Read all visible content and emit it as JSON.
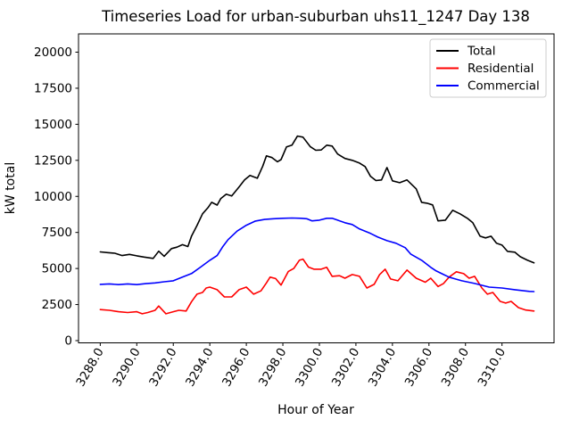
{
  "chart_data": {
    "type": "line",
    "title": "Timeseries Load for urban-suburban uhs11_1247  Day 138",
    "xlabel": "Hour of Year",
    "ylabel": "kW total",
    "xlim": [
      3286.81,
      3312.85
    ],
    "ylim": [
      -155,
      21268
    ],
    "grid": false,
    "x_ticks": [
      3288,
      3290,
      3292,
      3294,
      3296,
      3298,
      3300,
      3302,
      3304,
      3306,
      3308,
      3310
    ],
    "x_tick_labels": [
      "3288.0",
      "3290.0",
      "3292.0",
      "3294.0",
      "3296.0",
      "3298.0",
      "3300.0",
      "3302.0",
      "3304.0",
      "3306.0",
      "3308.0",
      "3310.0"
    ],
    "x_tick_rotation_deg": 60,
    "y_ticks": [
      0,
      2500,
      5000,
      7500,
      10000,
      12500,
      15000,
      17500,
      20000
    ],
    "y_tick_labels": [
      "0",
      "2500",
      "5000",
      "7500",
      "10000",
      "12500",
      "15000",
      "17500",
      "20000"
    ],
    "legend": {
      "position": "upper right",
      "border_color": "#cccccc"
    },
    "series": [
      {
        "name": "Total",
        "color": "#000000",
        "x": [
          3288.0,
          3288.4,
          3288.8,
          3289.2,
          3289.6,
          3290.0,
          3290.4,
          3290.9,
          3291.2,
          3291.5,
          3291.9,
          3292.2,
          3292.5,
          3292.8,
          3293.0,
          3293.3,
          3293.6,
          3293.9,
          3294.1,
          3294.4,
          3294.6,
          3294.9,
          3295.2,
          3295.6,
          3295.9,
          3296.2,
          3296.6,
          3296.9,
          3297.1,
          3297.4,
          3297.7,
          3297.9,
          3298.2,
          3298.5,
          3298.8,
          3299.1,
          3299.5,
          3299.8,
          3300.1,
          3300.4,
          3300.7,
          3301.0,
          3301.4,
          3301.8,
          3302.2,
          3302.5,
          3302.8,
          3303.1,
          3303.4,
          3303.7,
          3304.0,
          3304.4,
          3304.8,
          3305.3,
          3305.6,
          3305.9,
          3306.2,
          3306.5,
          3306.9,
          3307.3,
          3307.7,
          3308.1,
          3308.4,
          3308.8,
          3309.1,
          3309.4,
          3309.7,
          3310.0,
          3310.3,
          3310.7,
          3311.0,
          3311.4,
          3311.75
        ],
        "y": [
          6150,
          6100,
          6060,
          5900,
          5980,
          5880,
          5790,
          5700,
          6200,
          5850,
          6380,
          6480,
          6650,
          6520,
          7250,
          7980,
          8790,
          9220,
          9590,
          9400,
          9840,
          10150,
          10030,
          10650,
          11140,
          11450,
          11260,
          12100,
          12810,
          12690,
          12400,
          12550,
          13430,
          13560,
          14180,
          14110,
          13450,
          13200,
          13220,
          13550,
          13490,
          12940,
          12630,
          12500,
          12310,
          12070,
          11390,
          11100,
          11140,
          12000,
          11080,
          10950,
          11140,
          10520,
          9590,
          9530,
          9410,
          8300,
          8350,
          9040,
          8790,
          8480,
          8170,
          7240,
          7120,
          7240,
          6750,
          6620,
          6190,
          6130,
          5820,
          5570,
          5390
        ]
      },
      {
        "name": "Residential",
        "color": "#ff0000",
        "x": [
          3288.0,
          3288.5,
          3289.0,
          3289.5,
          3290.0,
          3290.3,
          3290.6,
          3291.0,
          3291.2,
          3291.6,
          3292.0,
          3292.3,
          3292.7,
          3293.0,
          3293.3,
          3293.6,
          3293.8,
          3294.0,
          3294.4,
          3294.8,
          3295.2,
          3295.6,
          3296.0,
          3296.4,
          3296.8,
          3297.1,
          3297.3,
          3297.6,
          3297.9,
          3298.3,
          3298.6,
          3298.9,
          3299.1,
          3299.4,
          3299.7,
          3300.1,
          3300.4,
          3300.7,
          3301.1,
          3301.4,
          3301.8,
          3302.2,
          3302.6,
          3303.0,
          3303.3,
          3303.6,
          3303.9,
          3304.3,
          3304.8,
          3305.3,
          3305.8,
          3306.1,
          3306.5,
          3306.8,
          3307.1,
          3307.5,
          3307.9,
          3308.2,
          3308.5,
          3308.9,
          3309.2,
          3309.5,
          3309.9,
          3310.2,
          3310.5,
          3310.9,
          3311.3,
          3311.75
        ],
        "y": [
          2150,
          2100,
          2000,
          1950,
          2000,
          1860,
          1950,
          2100,
          2400,
          1860,
          2000,
          2100,
          2050,
          2700,
          3220,
          3340,
          3650,
          3710,
          3530,
          3030,
          3030,
          3530,
          3710,
          3220,
          3450,
          4000,
          4400,
          4300,
          3850,
          4800,
          5000,
          5570,
          5650,
          5100,
          4950,
          4950,
          5080,
          4460,
          4500,
          4330,
          4580,
          4460,
          3650,
          3900,
          4580,
          4950,
          4270,
          4150,
          4890,
          4330,
          4050,
          4330,
          3750,
          3960,
          4400,
          4770,
          4640,
          4330,
          4460,
          3650,
          3220,
          3340,
          2720,
          2600,
          2720,
          2290,
          2120,
          2050
        ]
      },
      {
        "name": "Commercial",
        "color": "#0000ff",
        "x": [
          3288.0,
          3288.5,
          3289.0,
          3289.5,
          3290.0,
          3290.5,
          3291.0,
          3291.5,
          3292.0,
          3292.5,
          3293.0,
          3293.5,
          3294.0,
          3294.4,
          3294.7,
          3295.0,
          3295.5,
          3296.0,
          3296.5,
          3297.0,
          3297.5,
          3298.0,
          3298.5,
          3299.0,
          3299.3,
          3299.6,
          3300.0,
          3300.4,
          3300.7,
          3301.0,
          3301.4,
          3301.8,
          3302.2,
          3302.8,
          3303.2,
          3303.7,
          3304.2,
          3304.7,
          3305.0,
          3305.6,
          3306.1,
          3306.4,
          3306.8,
          3307.1,
          3307.8,
          3308.5,
          3309.3,
          3310.0,
          3310.7,
          3311.5,
          3311.75
        ],
        "y": [
          3900,
          3930,
          3880,
          3930,
          3880,
          3950,
          4000,
          4080,
          4150,
          4400,
          4650,
          5100,
          5570,
          5900,
          6500,
          7000,
          7600,
          8000,
          8290,
          8400,
          8450,
          8480,
          8500,
          8480,
          8450,
          8300,
          8350,
          8480,
          8480,
          8350,
          8170,
          8050,
          7740,
          7430,
          7180,
          6930,
          6750,
          6440,
          6000,
          5570,
          5080,
          4830,
          4580,
          4400,
          4150,
          3960,
          3710,
          3650,
          3530,
          3410,
          3400
        ]
      }
    ]
  }
}
